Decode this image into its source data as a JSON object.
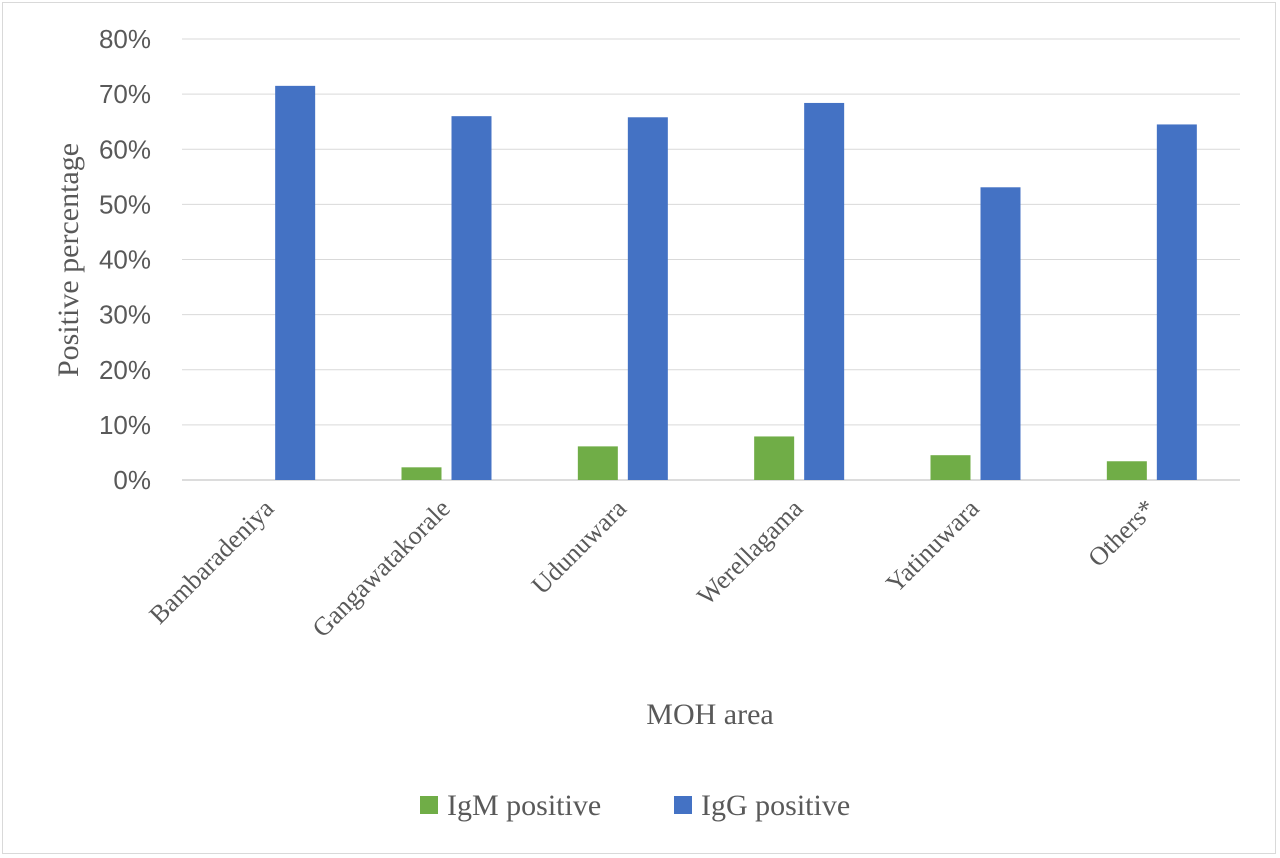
{
  "chart_data": {
    "type": "bar",
    "categories": [
      "Bambaradeniya",
      "Gangawatakorale",
      "Udunuwara",
      "Werellagama",
      "Yatinuwara",
      "Others*"
    ],
    "series": [
      {
        "name": "IgM positive",
        "values": [
          0.0,
          2.3,
          6.1,
          7.9,
          4.5,
          3.4
        ],
        "color": "#70ad47"
      },
      {
        "name": "IgG positive",
        "values": [
          71.5,
          66.0,
          65.8,
          68.4,
          53.1,
          64.5
        ],
        "color": "#4472c4"
      }
    ],
    "xlabel": "MOH area",
    "ylabel": "Positive percentage",
    "ylim": [
      0,
      80
    ],
    "yticks": [
      "0%",
      "10%",
      "20%",
      "30%",
      "40%",
      "50%",
      "60%",
      "70%",
      "80%"
    ],
    "grid": true,
    "legend": "bottom"
  }
}
